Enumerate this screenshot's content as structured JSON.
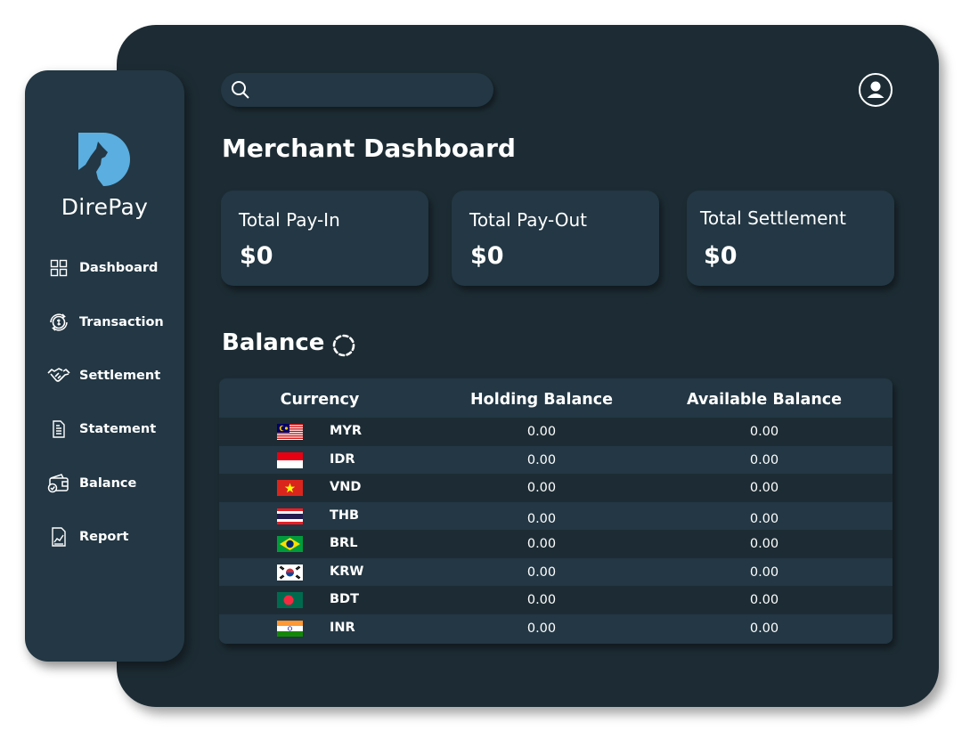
{
  "brand": {
    "name": "DirePay"
  },
  "sidebar": {
    "items": [
      {
        "label": "Dashboard",
        "icon": "grid-icon"
      },
      {
        "label": "Transaction",
        "icon": "coin-exchange-icon"
      },
      {
        "label": "Settlement",
        "icon": "handshake-icon"
      },
      {
        "label": "Statement",
        "icon": "document-icon"
      },
      {
        "label": "Balance",
        "icon": "wallet-icon"
      },
      {
        "label": "Report",
        "icon": "chart-report-icon"
      }
    ]
  },
  "search": {
    "placeholder": "",
    "value": ""
  },
  "page_title": "Merchant Dashboard",
  "cards": [
    {
      "label": "Total Pay-In",
      "value": "$0"
    },
    {
      "label": "Total Pay-Out",
      "value": "$0"
    },
    {
      "label": "Total Settlement",
      "value": "$0"
    }
  ],
  "balance": {
    "title": "Balance",
    "columns": [
      "Currency",
      "Holding Balance",
      "Available Balance"
    ],
    "rows": [
      {
        "code": "MYR",
        "holding": "0.00",
        "available": "0.00",
        "flag": "malaysia-flag-icon"
      },
      {
        "code": "IDR",
        "holding": "0.00",
        "available": "0.00",
        "flag": "indonesia-flag-icon"
      },
      {
        "code": "VND",
        "holding": "0.00",
        "available": "0.00",
        "flag": "vietnam-flag-icon"
      },
      {
        "code": "THB",
        "holding": "0.00",
        "available": "0.00",
        "flag": "thailand-flag-icon"
      },
      {
        "code": "BRL",
        "holding": "0.00",
        "available": "0.00",
        "flag": "brazil-flag-icon"
      },
      {
        "code": "KRW",
        "holding": "0.00",
        "available": "0.00",
        "flag": "south-korea-flag-icon"
      },
      {
        "code": "BDT",
        "holding": "0.00",
        "available": "0.00",
        "flag": "bangladesh-flag-icon"
      },
      {
        "code": "INR",
        "holding": "0.00",
        "available": "0.00",
        "flag": "india-flag-icon"
      }
    ]
  },
  "colors": {
    "panel": "#1d2c34",
    "sidebar": "#233744",
    "accent": "#5aaee0"
  }
}
